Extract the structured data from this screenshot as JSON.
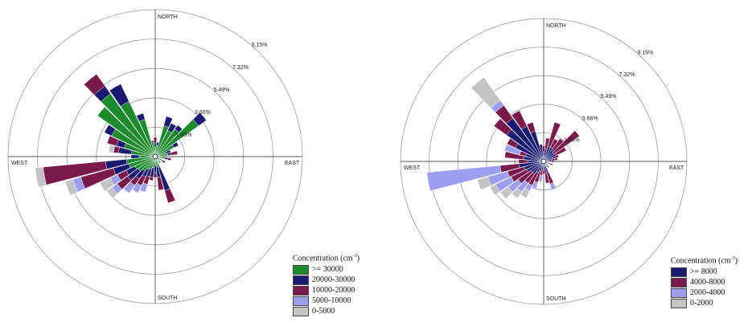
{
  "chart_data": [
    {
      "type": "wind-rose",
      "directions": [
        "NORTH",
        "EAST",
        "SOUTH",
        "WEST"
      ],
      "ring_labels": [
        "1.83%",
        "3.66%",
        "5.49%",
        "7.32%",
        "9.15%"
      ],
      "ring_values": [
        1.83,
        3.66,
        5.49,
        7.32,
        9.15
      ],
      "legend_title": "Concentration (cm",
      "legend_title_exp": "-3",
      "legend_title_end": ")",
      "bins": [
        {
          "label": ">= 30000",
          "color": "#1e8a2e"
        },
        {
          "label": "20000-30000",
          "color": "#1a1a70"
        },
        {
          "label": "10000-20000",
          "color": "#7a1a4a"
        },
        {
          "label": "5000-10000",
          "color": "#9e9ef0"
        },
        {
          "label": "0-5000",
          "color": "#c4c4c4"
        }
      ],
      "sectors": [
        {
          "dir": 0,
          "cum": [
            0.6,
            0.8,
            1.2,
            1.2,
            1.2
          ]
        },
        {
          "dir": 10,
          "cum": [
            0.7,
            0.9,
            0.9,
            0.9,
            0.9
          ]
        },
        {
          "dir": 20,
          "cum": [
            2.0,
            2.6,
            2.6,
            2.6,
            2.6
          ]
        },
        {
          "dir": 30,
          "cum": [
            1.8,
            2.3,
            2.3,
            2.3,
            2.3
          ]
        },
        {
          "dir": 40,
          "cum": [
            2.1,
            2.4,
            2.4,
            2.4,
            2.4
          ]
        },
        {
          "dir": 50,
          "cum": [
            3.3,
            3.9,
            3.9,
            3.9,
            3.9
          ]
        },
        {
          "dir": 60,
          "cum": [
            1.3,
            1.6,
            1.6,
            1.6,
            1.6
          ]
        },
        {
          "dir": 70,
          "cum": [
            0.7,
            1.0,
            1.0,
            1.0,
            1.0
          ]
        },
        {
          "dir": 80,
          "cum": [
            0.8,
            1.0,
            1.4,
            1.4,
            1.4
          ]
        },
        {
          "dir": 90,
          "cum": [
            0.5,
            0.6,
            0.6,
            0.6,
            0.6
          ]
        },
        {
          "dir": 100,
          "cum": [
            0.6,
            0.8,
            1.0,
            1.0,
            1.0
          ]
        },
        {
          "dir": 120,
          "cum": [
            0.5,
            0.7,
            0.7,
            0.7,
            0.7
          ]
        },
        {
          "dir": 140,
          "cum": [
            0.4,
            0.5,
            0.5,
            0.5,
            0.5
          ]
        },
        {
          "dir": 160,
          "cum": [
            0.7,
            2.2,
            3.0,
            3.0,
            3.0
          ]
        },
        {
          "dir": 170,
          "cum": [
            0.6,
            1.3,
            2.1,
            2.1,
            2.1
          ]
        },
        {
          "dir": 180,
          "cum": [
            0.5,
            1.0,
            1.3,
            1.3,
            1.3
          ]
        },
        {
          "dir": 190,
          "cum": [
            0.7,
            1.3,
            1.5,
            1.5,
            1.5
          ]
        },
        {
          "dir": 200,
          "cum": [
            0.8,
            1.3,
            1.8,
            2.3,
            2.3
          ]
        },
        {
          "dir": 210,
          "cum": [
            0.9,
            1.4,
            2.0,
            2.5,
            2.5
          ]
        },
        {
          "dir": 220,
          "cum": [
            1.1,
            1.7,
            2.2,
            2.8,
            2.8
          ]
        },
        {
          "dir": 230,
          "cum": [
            1.3,
            2.1,
            2.9,
            3.3,
            3.7
          ]
        },
        {
          "dir": 240,
          "cum": [
            1.4,
            2.0,
            2.6,
            3.1,
            3.8
          ]
        },
        {
          "dir": 250,
          "cum": [
            1.7,
            2.7,
            4.8,
            5.3,
            5.8
          ]
        },
        {
          "dir": 260,
          "cum": [
            1.8,
            3.1,
            7.0,
            7.0,
            7.5
          ]
        },
        {
          "dir": 270,
          "cum": [
            1.0,
            1.5,
            1.5,
            1.5,
            1.5
          ]
        },
        {
          "dir": 280,
          "cum": [
            1.5,
            2.3,
            2.6,
            2.6,
            2.9
          ]
        },
        {
          "dir": 290,
          "cum": [
            2.0,
            2.5,
            3.1,
            3.1,
            3.1
          ]
        },
        {
          "dir": 300,
          "cum": [
            3.0,
            3.5,
            3.5,
            3.5,
            3.5
          ]
        },
        {
          "dir": 310,
          "cum": [
            4.4,
            4.4,
            4.4,
            4.4,
            4.4
          ]
        },
        {
          "dir": 320,
          "cum": [
            4.8,
            5.4,
            6.3,
            6.3,
            6.3
          ]
        },
        {
          "dir": 330,
          "cum": [
            3.8,
            5.0,
            5.0,
            5.0,
            5.0
          ]
        },
        {
          "dir": 340,
          "cum": [
            2.4,
            2.8,
            2.8,
            2.8,
            2.8
          ]
        },
        {
          "dir": 350,
          "cum": [
            0.9,
            1.0,
            1.0,
            1.0,
            1.0
          ]
        }
      ]
    },
    {
      "type": "wind-rose",
      "directions": [
        "NORTH",
        "EAST",
        "SOUTH",
        "WEST"
      ],
      "ring_labels": [
        "1.83%",
        "3.66%",
        "5.49%",
        "7.32%",
        "9.15%"
      ],
      "ring_values": [
        1.83,
        3.66,
        5.49,
        7.32,
        9.15
      ],
      "legend_title": "Concentration (cm",
      "legend_title_exp": "-3",
      "legend_title_end": ")",
      "bins": [
        {
          "label": ">= 8000",
          "color": "#1a1a70"
        },
        {
          "label": "4000-8000",
          "color": "#7a1a4a"
        },
        {
          "label": "2000-4000",
          "color": "#9e9ef0"
        },
        {
          "label": "0-2000",
          "color": "#c4c4c4"
        }
      ],
      "sectors": [
        {
          "dir": 0,
          "cum": [
            0.6,
            1.0,
            1.0,
            1.0
          ]
        },
        {
          "dir": 10,
          "cum": [
            0.8,
            1.5,
            1.5,
            1.5
          ]
        },
        {
          "dir": 20,
          "cum": [
            1.0,
            2.6,
            2.6,
            2.6
          ]
        },
        {
          "dir": 30,
          "cum": [
            1.0,
            1.6,
            1.6,
            1.6
          ]
        },
        {
          "dir": 40,
          "cum": [
            0.9,
            1.8,
            1.8,
            1.8
          ]
        },
        {
          "dir": 50,
          "cum": [
            0.8,
            2.8,
            2.8,
            2.8
          ]
        },
        {
          "dir": 60,
          "cum": [
            0.9,
            1.6,
            1.6,
            1.6
          ]
        },
        {
          "dir": 70,
          "cum": [
            0.6,
            1.0,
            1.0,
            1.0
          ]
        },
        {
          "dir": 80,
          "cum": [
            0.7,
            0.9,
            0.9,
            0.9
          ]
        },
        {
          "dir": 90,
          "cum": [
            0.5,
            0.7,
            0.7,
            0.7
          ]
        },
        {
          "dir": 110,
          "cum": [
            0.4,
            0.6,
            0.6,
            0.6
          ]
        },
        {
          "dir": 140,
          "cum": [
            0.4,
            0.5,
            0.5,
            0.5
          ]
        },
        {
          "dir": 160,
          "cum": [
            0.7,
            1.5,
            1.9,
            1.9
          ]
        },
        {
          "dir": 170,
          "cum": [
            0.8,
            1.4,
            1.4,
            1.4
          ]
        },
        {
          "dir": 180,
          "cum": [
            0.5,
            0.8,
            0.8,
            0.8
          ]
        },
        {
          "dir": 190,
          "cum": [
            0.6,
            0.9,
            1.3,
            1.3
          ]
        },
        {
          "dir": 200,
          "cum": [
            0.7,
            1.4,
            1.8,
            1.8
          ]
        },
        {
          "dir": 210,
          "cum": [
            0.8,
            1.7,
            2.1,
            2.6
          ]
        },
        {
          "dir": 220,
          "cum": [
            1.0,
            1.7,
            2.4,
            2.9
          ]
        },
        {
          "dir": 230,
          "cum": [
            1.0,
            2.0,
            2.8,
            3.4
          ]
        },
        {
          "dir": 240,
          "cum": [
            1.2,
            2.3,
            3.4,
            3.8
          ]
        },
        {
          "dir": 250,
          "cum": [
            1.3,
            2.4,
            3.7,
            4.4
          ]
        },
        {
          "dir": 260,
          "cum": [
            1.6,
            2.8,
            7.5,
            7.5
          ]
        },
        {
          "dir": 270,
          "cum": [
            1.0,
            1.6,
            1.6,
            1.6
          ]
        },
        {
          "dir": 280,
          "cum": [
            1.3,
            2.5,
            2.5,
            2.5
          ]
        },
        {
          "dir": 290,
          "cum": [
            1.2,
            1.6,
            2.6,
            2.6
          ]
        },
        {
          "dir": 300,
          "cum": [
            2.0,
            2.6,
            2.6,
            2.6
          ]
        },
        {
          "dir": 310,
          "cum": [
            2.9,
            3.9,
            3.9,
            3.9
          ]
        },
        {
          "dir": 320,
          "cum": [
            3.4,
            4.4,
            4.8,
            6.6
          ]
        },
        {
          "dir": 330,
          "cum": [
            2.5,
            3.6,
            3.6,
            3.6
          ]
        },
        {
          "dir": 340,
          "cum": [
            2.0,
            2.6,
            2.6,
            2.6
          ]
        },
        {
          "dir": 350,
          "cum": [
            1.1,
            1.1,
            1.1,
            1.1
          ]
        }
      ]
    }
  ]
}
